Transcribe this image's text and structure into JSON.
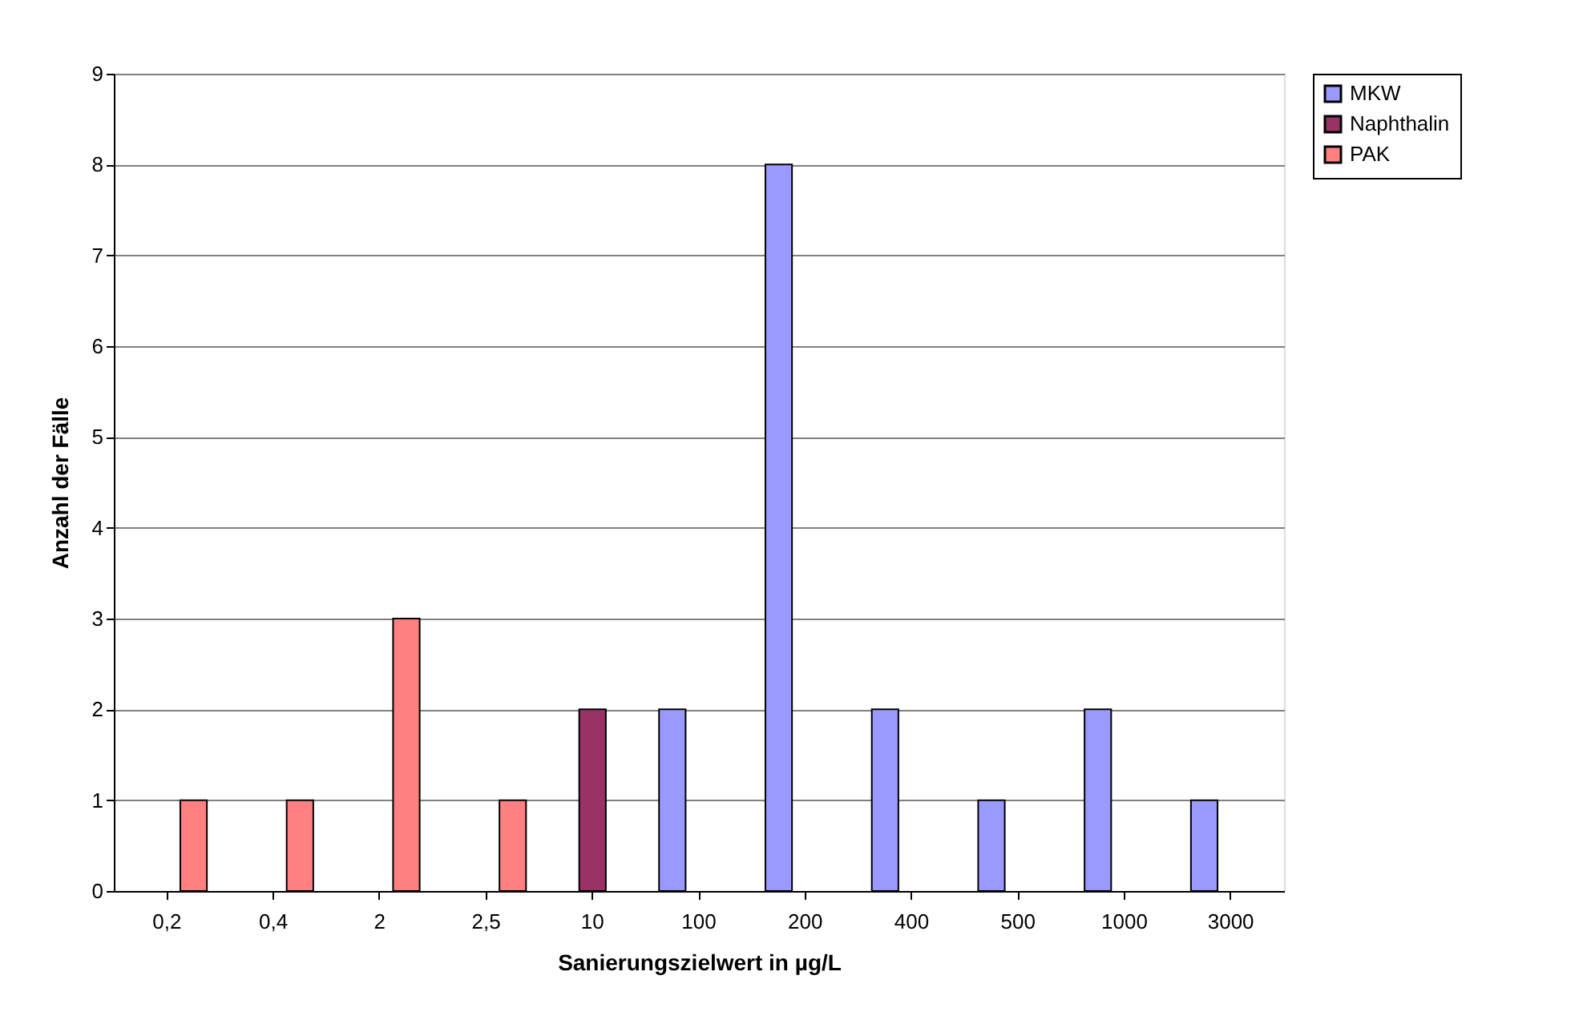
{
  "chart_data": {
    "type": "bar",
    "xlabel": "Sanierungszielwert in µg/L",
    "ylabel": "Anzahl der Fälle",
    "categories": [
      "0,2",
      "0,4",
      "2",
      "2,5",
      "10",
      "100",
      "200",
      "400",
      "500",
      "1000",
      "3000"
    ],
    "series": [
      {
        "name": "MKW",
        "color": "#9999ff",
        "values": [
          null,
          null,
          null,
          null,
          null,
          2,
          8,
          2,
          1,
          2,
          1
        ]
      },
      {
        "name": "Naphthalin",
        "color": "#993366",
        "values": [
          null,
          null,
          null,
          null,
          2,
          null,
          null,
          null,
          null,
          null,
          null
        ]
      },
      {
        "name": "PAK",
        "color": "#ff8080",
        "values": [
          1,
          1,
          3,
          1,
          null,
          null,
          null,
          null,
          null,
          null,
          null
        ]
      }
    ],
    "ylim": [
      0,
      9
    ],
    "yticks": [
      0,
      1,
      2,
      3,
      4,
      5,
      6,
      7,
      8,
      9
    ],
    "grid": "y",
    "legend": "right"
  }
}
